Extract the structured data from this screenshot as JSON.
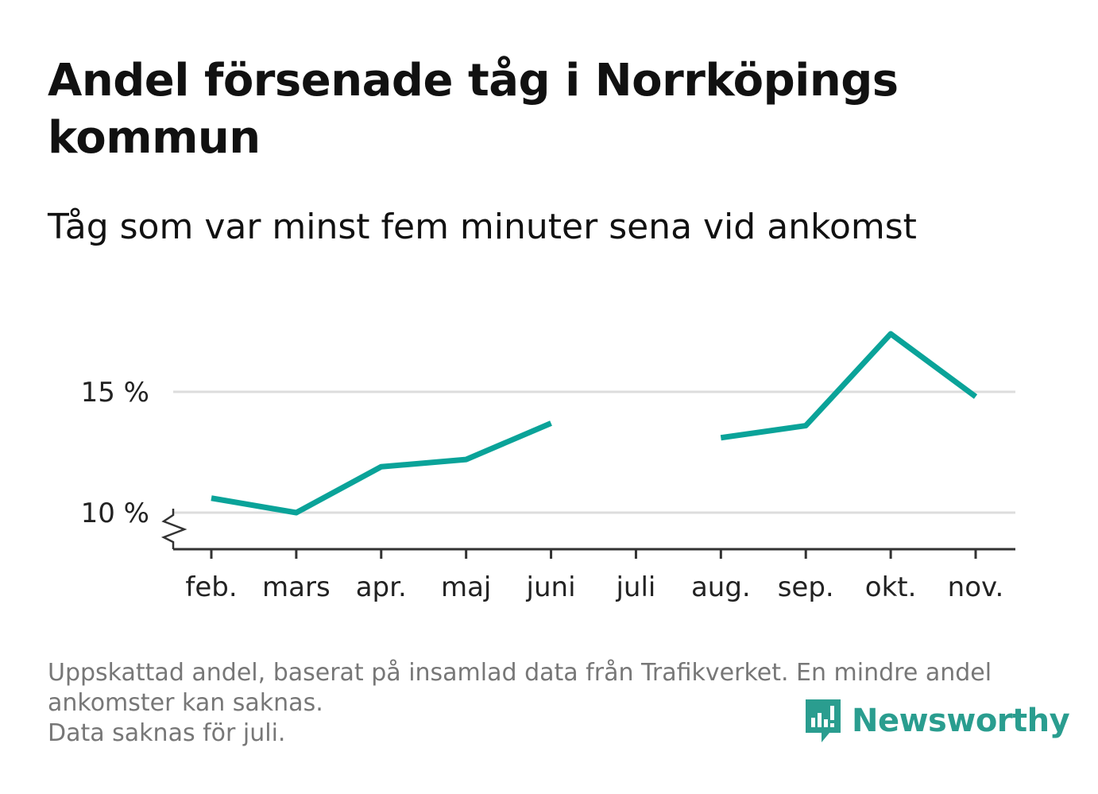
{
  "header": {
    "title": "Andel försenade tåg i Norrköpings kommun",
    "subtitle": "Tåg som var minst fem minuter sena vid ankomst"
  },
  "footnote": {
    "line1": "Uppskattad andel, baserat på insamlad data från Trafikverket. En mindre andel",
    "line2": "ankomster kan saknas.",
    "line3": "Data saknas för juli."
  },
  "brand": {
    "name": "Newsworthy",
    "icon": "newsworthy-logo-icon"
  },
  "colors": {
    "line": "#0aa399",
    "grid": "#dddddd",
    "axis": "#333333",
    "brand": "#2a9d8f"
  },
  "chart_data": {
    "type": "line",
    "title": "Andel försenade tåg i Norrköpings kommun",
    "subtitle": "Tåg som var minst fem minuter sena vid ankomst",
    "categories": [
      "feb.",
      "mars",
      "apr.",
      "maj",
      "juni",
      "juli",
      "aug.",
      "sep.",
      "okt.",
      "nov."
    ],
    "series": [
      {
        "values": [
          10.6,
          10.0,
          11.9,
          12.2,
          13.7,
          null,
          13.1,
          13.6,
          17.4,
          14.8
        ]
      }
    ],
    "yticks": [
      10,
      15
    ],
    "ytick_labels": [
      "10 %",
      "15 %"
    ],
    "ylim": [
      8.5,
      18
    ],
    "y_axis_break": true,
    "grid": true,
    "legend": "none"
  }
}
